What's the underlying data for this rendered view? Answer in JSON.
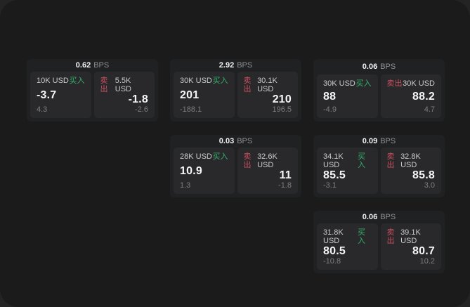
{
  "labels": {
    "bps_unit": "BPS",
    "buy": "买入",
    "sell": "卖出"
  },
  "colors": {
    "buy_green": "#35b16d",
    "sell_red": "#c9505f",
    "canvas_bg": "#1b1b1c",
    "card_bg": "#202122",
    "panel_bg": "#29292b"
  },
  "cards": [
    {
      "bps": "0.62",
      "buy": {
        "size": "10K USD",
        "value": "-3.7",
        "sub": "4.3"
      },
      "sell": {
        "size": "5.5K USD",
        "value": "-1.8",
        "sub": "-2.6"
      }
    },
    {
      "bps": "2.92",
      "buy": {
        "size": "30K USD",
        "value": "201",
        "sub": "-188.1"
      },
      "sell": {
        "size": "30.1K USD",
        "value": "210",
        "sub": "196.5"
      }
    },
    {
      "bps": "0.06",
      "buy": {
        "size": "30K USD",
        "value": "88",
        "sub": "-4.9"
      },
      "sell": {
        "size": "30K USD",
        "value": "88.2",
        "sub": "4.7"
      }
    },
    {
      "bps": "0.03",
      "buy": {
        "size": "28K USD",
        "value": "10.9",
        "sub": "1.3"
      },
      "sell": {
        "size": "32.6K USD",
        "value": "11",
        "sub": "-1.8"
      }
    },
    {
      "bps": "0.09",
      "buy": {
        "size": "34.1K USD",
        "value": "85.5",
        "sub": "-3.1"
      },
      "sell": {
        "size": "32.8K USD",
        "value": "85.8",
        "sub": "3.0"
      }
    },
    {
      "bps": "0.06",
      "buy": {
        "size": "31.8K USD",
        "value": "80.5",
        "sub": "-10.8"
      },
      "sell": {
        "size": "39.1K USD",
        "value": "80.7",
        "sub": "10.2"
      }
    }
  ]
}
